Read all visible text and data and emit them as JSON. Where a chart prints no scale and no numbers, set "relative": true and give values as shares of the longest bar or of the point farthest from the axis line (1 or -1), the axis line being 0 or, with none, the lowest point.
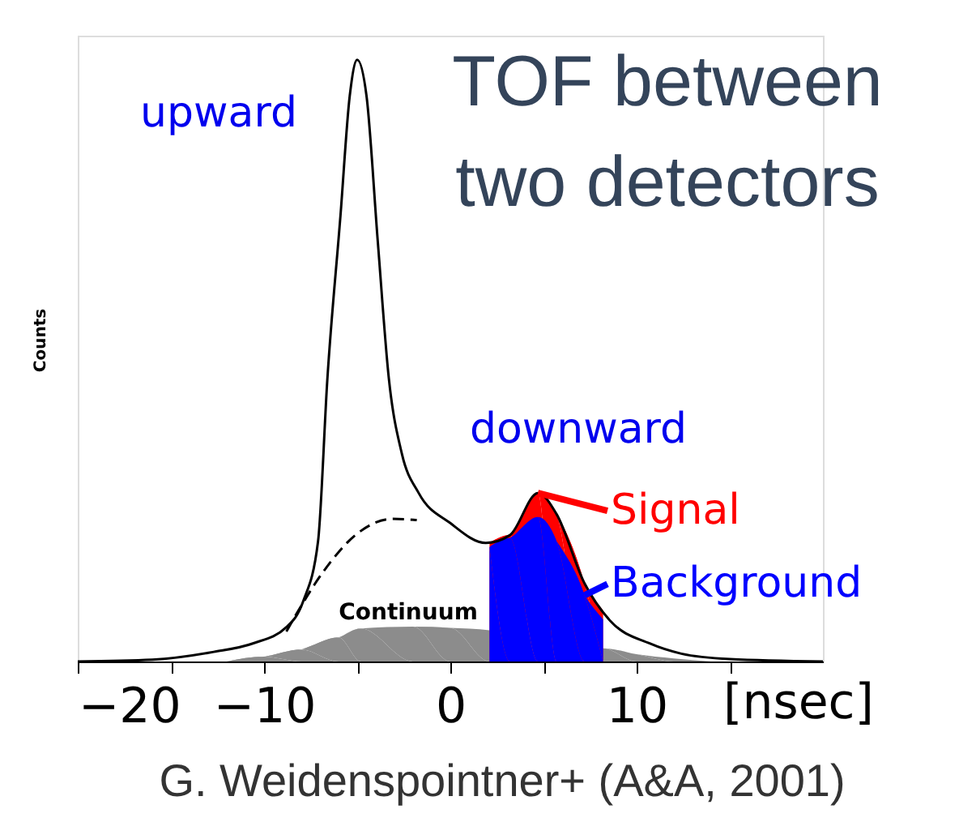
{
  "chart_data": {
    "type": "line",
    "title": "TOF between two detectors",
    "xlabel": "[nsec]",
    "ylabel": "Counts",
    "relative": true,
    "xlim": [
      -20,
      20
    ],
    "xticks": [
      -20,
      {
        "value": -15,
        "label": null
      },
      -10,
      {
        "value": -5,
        "label": null
      },
      0,
      {
        "value": 5,
        "label": null
      },
      10,
      {
        "value": 15,
        "label": null
      }
    ],
    "tick_labels": "x",
    "grid": false,
    "legend": "right",
    "annotations": [
      "upward",
      "downward",
      "Continuum",
      "G. Weidenspointner+ (A&A, 2001)"
    ],
    "series": [
      {
        "type": "area",
        "color": "#8c8c8c",
        "x": [
          -12,
          -10,
          -8,
          -6,
          -4.8,
          -2,
          0,
          2.1,
          5,
          8.2,
          10,
          12,
          14
        ],
        "values": [
          0,
          0.008,
          0.02,
          0.04,
          0.055,
          0.058,
          0.056,
          0.052,
          null,
          0.022,
          0.012,
          0.005,
          0
        ]
      },
      {
        "type": "area",
        "name": "Signal",
        "color": "#ff0000",
        "x": [
          2.1,
          3.2,
          4.7,
          5.7,
          7.2,
          8.2
        ],
        "values": [
          0.197,
          0.21,
          0.28,
          0.245,
          0.13,
          0.085
        ]
      },
      {
        "type": "area",
        "name": "Background",
        "color": "#0000ff",
        "x": [
          2.1,
          3.2,
          4.7,
          5.7,
          7.2,
          8.2
        ],
        "values": [
          0.19,
          0.205,
          0.24,
          0.2,
          0.11,
          0.07
        ]
      },
      {
        "color": "#000000",
        "x": [
          -20,
          -16,
          -12.7,
          -10.6,
          -8.8,
          -7.9,
          -7.1,
          -6.6,
          -5.9,
          -5.4,
          -5,
          -4.5,
          -3.9,
          -3.3,
          -2.6,
          -1.7,
          0,
          1.9,
          3.2,
          4.7,
          5.7,
          7.2,
          8.6,
          10.7,
          12.4,
          15,
          20
        ],
        "values": [
          0,
          0.003,
          0.016,
          0.03,
          0.057,
          0.1,
          0.2,
          0.47,
          0.74,
          0.94,
          1,
          0.94,
          0.7,
          0.47,
          0.345,
          0.28,
          0.23,
          0.197,
          0.21,
          0.28,
          0.245,
          0.13,
          0.067,
          0.03,
          0.013,
          0.004,
          0
        ]
      },
      {
        "line_style": "dashed",
        "color": "#000000",
        "x": [
          -8.8,
          -6.8,
          -5.1,
          -3.1,
          -1.8
        ],
        "values": [
          0.05,
          0.15,
          0.21,
          0.237,
          0.235
        ]
      }
    ]
  }
}
